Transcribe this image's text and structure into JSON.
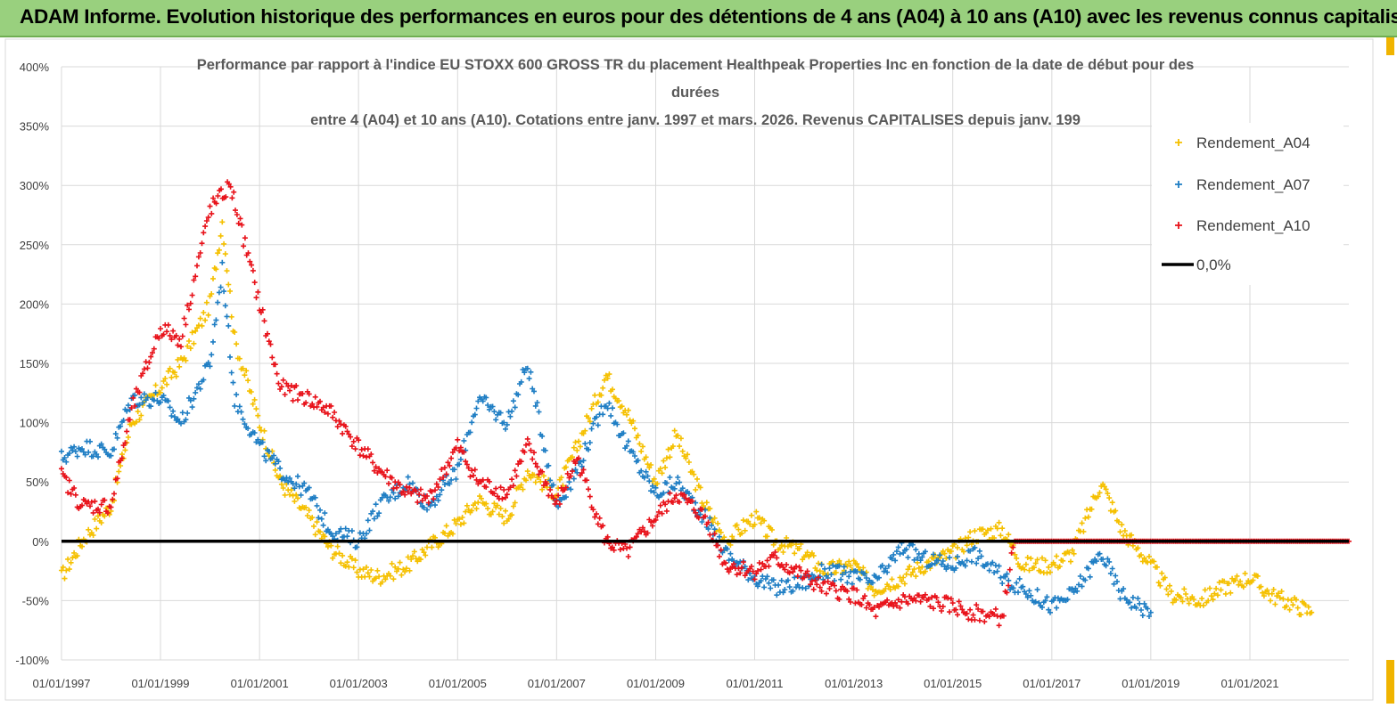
{
  "banner": {
    "title": "ADAM Informe. Evolution historique des performances en euros pour des détentions de 4 ans (A04) à 10 ans (A10) avec les revenus connus capitalisés"
  },
  "colors": {
    "banner_bg": "#99d07e",
    "a04": "#f5c000",
    "a07": "#1f7ec4",
    "a10": "#e8121a",
    "zero_line": "#000000",
    "grid": "#d9d9d9"
  },
  "chart_data": {
    "type": "scatter",
    "title_lines": [
      "Performance par rapport à l'indice EU STOXX 600 GROSS TR  du placement Healthpeak Properties Inc en fonction de la date de début pour des",
      "durées",
      "entre 4 (A04) et 10 ans (A10). Cotations entre janv. 1997 et mars. 2026. Revenus CAPITALISES depuis janv. 199"
    ],
    "xlabel": "",
    "ylabel": "",
    "x_range": [
      "01/01/1997",
      "01/01/2023"
    ],
    "x_ticks": [
      "01/01/1997",
      "01/01/1999",
      "01/01/2001",
      "01/01/2003",
      "01/01/2005",
      "01/01/2007",
      "01/01/2009",
      "01/01/2011",
      "01/01/2013",
      "01/01/2015",
      "01/01/2017",
      "01/01/2019",
      "01/01/2021"
    ],
    "y_range": [
      -100,
      400
    ],
    "y_ticks": [
      "400%",
      "350%",
      "300%",
      "250%",
      "200%",
      "150%",
      "100%",
      "50%",
      "0%",
      "-50%",
      "-100%"
    ],
    "y_unit": "%",
    "grid": "horizontal",
    "legend_position": "right",
    "series": [
      {
        "name": "Rendement_A04",
        "marker": "+",
        "color": "#f5c000",
        "points": [
          [
            "01/01/1997",
            -30
          ],
          [
            "01/06/1997",
            0
          ],
          [
            "01/01/1998",
            30
          ],
          [
            "01/06/1998",
            100
          ],
          [
            "01/01/1999",
            130
          ],
          [
            "01/06/1999",
            150
          ],
          [
            "01/01/2000",
            200
          ],
          [
            "01/04/2000",
            270
          ],
          [
            "01/07/2000",
            170
          ],
          [
            "01/01/2001",
            100
          ],
          [
            "01/06/2001",
            50
          ],
          [
            "01/01/2002",
            20
          ],
          [
            "01/06/2002",
            -5
          ],
          [
            "01/01/2003",
            -25
          ],
          [
            "01/06/2003",
            -30
          ],
          [
            "01/01/2004",
            -20
          ],
          [
            "01/06/2004",
            -5
          ],
          [
            "01/01/2005",
            15
          ],
          [
            "01/06/2005",
            35
          ],
          [
            "01/01/2006",
            20
          ],
          [
            "01/06/2006",
            60
          ],
          [
            "01/01/2007",
            40
          ],
          [
            "01/06/2007",
            80
          ],
          [
            "01/01/2008",
            140
          ],
          [
            "01/06/2008",
            110
          ],
          [
            "01/01/2009",
            50
          ],
          [
            "01/06/2009",
            90
          ],
          [
            "01/01/2010",
            30
          ],
          [
            "01/06/2010",
            0
          ],
          [
            "01/01/2011",
            20
          ],
          [
            "01/06/2011",
            0
          ],
          [
            "01/01/2012",
            -10
          ],
          [
            "01/06/2012",
            -25
          ],
          [
            "01/01/2013",
            -20
          ],
          [
            "01/06/2013",
            -40
          ],
          [
            "01/01/2014",
            -30
          ],
          [
            "01/06/2014",
            -20
          ],
          [
            "01/01/2015",
            -10
          ],
          [
            "01/06/2015",
            5
          ],
          [
            "01/01/2016",
            10
          ],
          [
            "01/06/2016",
            -20
          ],
          [
            "01/01/2017",
            -20
          ],
          [
            "01/06/2017",
            -10
          ],
          [
            "01/01/2018",
            50
          ],
          [
            "01/06/2018",
            10
          ],
          [
            "01/01/2019",
            -20
          ],
          [
            "01/06/2019",
            -45
          ],
          [
            "01/01/2020",
            -50
          ],
          [
            "01/06/2020",
            -40
          ],
          [
            "01/01/2021",
            -30
          ],
          [
            "01/06/2021",
            -45
          ],
          [
            "01/01/2022",
            -55
          ],
          [
            "01/04/2022",
            -60
          ]
        ]
      },
      {
        "name": "Rendement_A07",
        "marker": "+",
        "color": "#1f7ec4",
        "points": [
          [
            "01/01/1997",
            70
          ],
          [
            "01/06/1997",
            80
          ],
          [
            "01/01/1998",
            75
          ],
          [
            "01/06/1998",
            120
          ],
          [
            "01/01/1999",
            120
          ],
          [
            "01/06/1999",
            100
          ],
          [
            "01/01/2000",
            150
          ],
          [
            "01/04/2000",
            230
          ],
          [
            "01/07/2000",
            120
          ],
          [
            "01/01/2001",
            80
          ],
          [
            "01/06/2001",
            60
          ],
          [
            "01/01/2002",
            40
          ],
          [
            "01/06/2002",
            10
          ],
          [
            "01/01/2003",
            0
          ],
          [
            "01/06/2003",
            30
          ],
          [
            "01/01/2004",
            50
          ],
          [
            "01/06/2004",
            30
          ],
          [
            "01/01/2005",
            60
          ],
          [
            "01/06/2005",
            120
          ],
          [
            "01/01/2006",
            100
          ],
          [
            "01/06/2006",
            150
          ],
          [
            "01/01/2007",
            30
          ],
          [
            "01/06/2007",
            60
          ],
          [
            "01/01/2008",
            120
          ],
          [
            "01/06/2008",
            80
          ],
          [
            "01/01/2009",
            40
          ],
          [
            "01/06/2009",
            50
          ],
          [
            "01/01/2010",
            20
          ],
          [
            "01/06/2010",
            -10
          ],
          [
            "01/01/2011",
            -30
          ],
          [
            "01/06/2011",
            -40
          ],
          [
            "01/01/2012",
            -35
          ],
          [
            "01/06/2012",
            -25
          ],
          [
            "01/01/2013",
            -30
          ],
          [
            "01/06/2013",
            -35
          ],
          [
            "01/01/2014",
            -5
          ],
          [
            "01/06/2014",
            -15
          ],
          [
            "01/01/2015",
            -20
          ],
          [
            "01/06/2015",
            -10
          ],
          [
            "01/01/2016",
            -30
          ],
          [
            "01/06/2016",
            -40
          ],
          [
            "01/01/2017",
            -55
          ],
          [
            "01/06/2017",
            -45
          ],
          [
            "01/01/2018",
            -10
          ],
          [
            "01/06/2018",
            -45
          ],
          [
            "01/01/2019",
            -60
          ]
        ]
      },
      {
        "name": "Rendement_A10",
        "marker": "+",
        "color": "#e8121a",
        "points": [
          [
            "01/01/1997",
            55
          ],
          [
            "01/06/1997",
            30
          ],
          [
            "01/01/1998",
            30
          ],
          [
            "01/06/1998",
            110
          ],
          [
            "01/01/1999",
            180
          ],
          [
            "01/06/1999",
            170
          ],
          [
            "01/01/2000",
            280
          ],
          [
            "01/06/2000",
            300
          ],
          [
            "01/01/2001",
            200
          ],
          [
            "01/06/2001",
            130
          ],
          [
            "01/01/2002",
            120
          ],
          [
            "01/06/2002",
            110
          ],
          [
            "01/01/2003",
            80
          ],
          [
            "01/06/2003",
            60
          ],
          [
            "01/01/2004",
            40
          ],
          [
            "01/06/2004",
            35
          ],
          [
            "01/01/2005",
            80
          ],
          [
            "01/06/2005",
            50
          ],
          [
            "01/01/2006",
            40
          ],
          [
            "01/06/2006",
            80
          ],
          [
            "01/01/2007",
            30
          ],
          [
            "01/06/2007",
            70
          ],
          [
            "01/01/2008",
            0
          ],
          [
            "01/06/2008",
            -10
          ],
          [
            "01/01/2009",
            20
          ],
          [
            "01/06/2009",
            40
          ],
          [
            "01/01/2010",
            20
          ],
          [
            "01/06/2010",
            -20
          ],
          [
            "01/01/2011",
            -25
          ],
          [
            "01/06/2011",
            -15
          ],
          [
            "01/01/2012",
            -30
          ],
          [
            "01/06/2012",
            -40
          ],
          [
            "01/01/2013",
            -45
          ],
          [
            "01/06/2013",
            -60
          ],
          [
            "01/01/2014",
            -50
          ],
          [
            "01/06/2014",
            -50
          ],
          [
            "01/01/2015",
            -55
          ],
          [
            "01/06/2015",
            -60
          ],
          [
            "01/01/2016",
            -65
          ],
          [
            "01/04/2016",
            0
          ],
          [
            "01/01/2017",
            0
          ],
          [
            "01/01/2018",
            0
          ],
          [
            "01/01/2019",
            0
          ],
          [
            "01/01/2020",
            0
          ],
          [
            "01/01/2021",
            0
          ],
          [
            "01/01/2022",
            0
          ],
          [
            "01/01/2023",
            0
          ]
        ]
      }
    ],
    "reference_line": {
      "name": "0,0%",
      "value": 0,
      "color": "#000000"
    },
    "legend": [
      "Rendement_A04",
      "Rendement_A07",
      "Rendement_A10",
      "0,0%"
    ]
  }
}
